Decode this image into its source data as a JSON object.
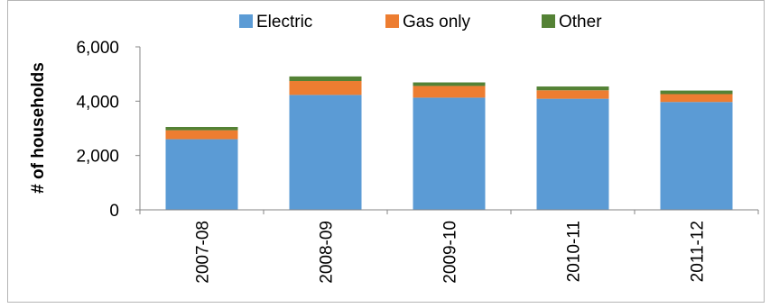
{
  "chart_data": {
    "type": "bar",
    "stacked": true,
    "categories": [
      "2007-08",
      "2008-09",
      "2009-10",
      "2010-11",
      "2011-12"
    ],
    "series": [
      {
        "name": "Electric",
        "color": "#5b9bd5",
        "values": [
          2600,
          4230,
          4130,
          4090,
          3970
        ]
      },
      {
        "name": "Gas only",
        "color": "#ed7d31",
        "values": [
          330,
          510,
          430,
          310,
          290
        ]
      },
      {
        "name": "Other",
        "color": "#548235",
        "values": [
          120,
          170,
          130,
          140,
          130
        ]
      }
    ],
    "title": "",
    "xlabel": "",
    "ylabel": "# of households",
    "ylim": [
      0,
      6000
    ],
    "yticks": [
      0,
      2000,
      4000,
      6000
    ],
    "ytick_labels": [
      "0",
      "2,000",
      "4,000",
      "6,000"
    ],
    "grid": false,
    "legend_position": "top"
  }
}
